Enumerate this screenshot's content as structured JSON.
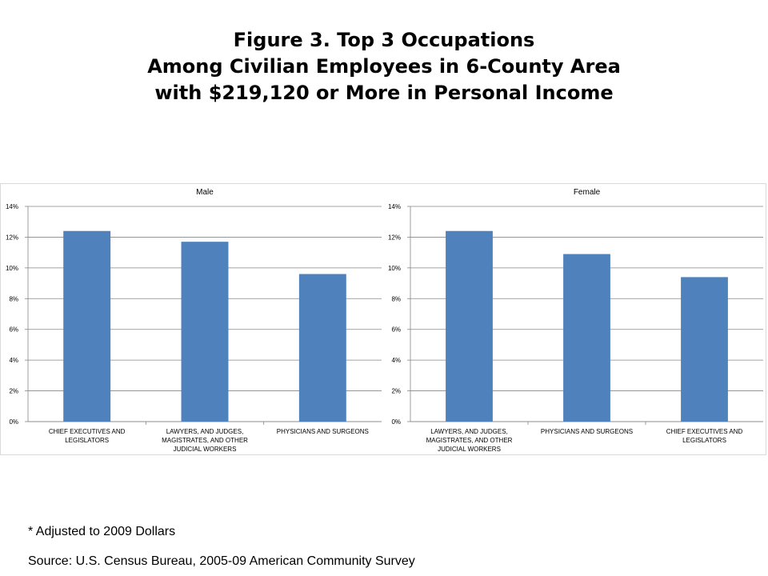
{
  "title": {
    "line1": "Figure 3. Top 3 Occupations",
    "line2": "Among Civilian Employees in 6-County Area",
    "line3": "with $219,120 or More in Personal Income"
  },
  "chart_data": [
    {
      "type": "bar",
      "title": "Male",
      "categories": [
        "CHIEF EXECUTIVES AND LEGISLATORS",
        "LAWYERS, AND JUDGES, MAGISTRATES, AND OTHER JUDICIAL WORKERS",
        "PHYSICIANS AND SURGEONS"
      ],
      "category_lines": [
        [
          "CHIEF EXECUTIVES AND",
          "LEGISLATORS"
        ],
        [
          "LAWYERS, AND JUDGES,",
          "MAGISTRATES, AND OTHER",
          "JUDICIAL WORKERS"
        ],
        [
          "PHYSICIANS AND SURGEONS"
        ]
      ],
      "values": [
        12.4,
        11.7,
        9.6
      ],
      "ylim": [
        0,
        14
      ],
      "yticks": [
        "0%",
        "2%",
        "4%",
        "6%",
        "8%",
        "10%",
        "12%",
        "14%"
      ],
      "xlabel": "",
      "ylabel": "",
      "grid": true,
      "legend": "none",
      "bar_color": "#4F81BD"
    },
    {
      "type": "bar",
      "title": "Female",
      "categories": [
        "LAWYERS, AND JUDGES, MAGISTRATES, AND OTHER JUDICIAL WORKERS",
        "PHYSICIANS AND SURGEONS",
        "CHIEF EXECUTIVES AND LEGISLATORS"
      ],
      "category_lines": [
        [
          "LAWYERS, AND JUDGES,",
          "MAGISTRATES, AND OTHER",
          "JUDICIAL WORKERS"
        ],
        [
          "PHYSICIANS AND SURGEONS"
        ],
        [
          "CHIEF EXECUTIVES AND",
          "LEGISLATORS"
        ]
      ],
      "values": [
        12.4,
        10.9,
        9.4
      ],
      "ylim": [
        0,
        14
      ],
      "yticks": [
        "0%",
        "2%",
        "4%",
        "6%",
        "8%",
        "10%",
        "12%",
        "14%"
      ],
      "xlabel": "",
      "ylabel": "",
      "grid": true,
      "legend": "none",
      "bar_color": "#4F81BD"
    }
  ],
  "notes": {
    "adjusted": "* Adjusted to 2009 Dollars",
    "source": "Source:  U.S. Census Bureau, 2005-09 American Community Survey"
  }
}
